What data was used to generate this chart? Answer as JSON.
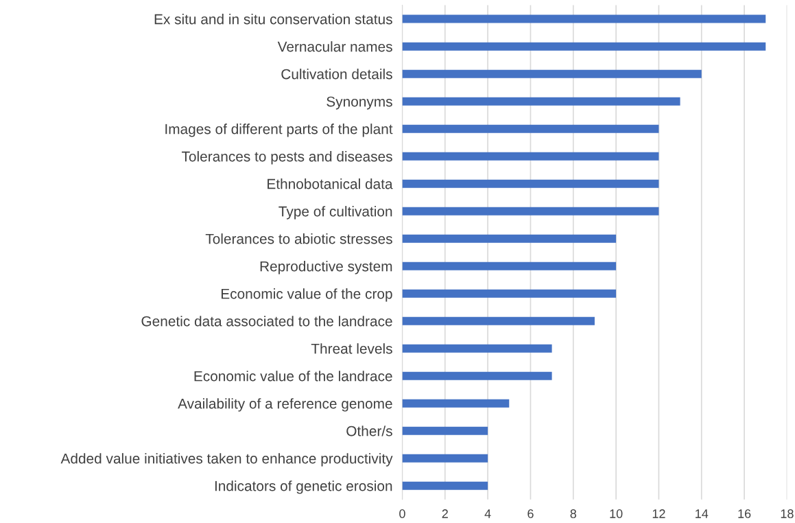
{
  "chart_data": {
    "type": "bar",
    "orientation": "horizontal",
    "categories": [
      "Ex situ and in situ conservation status",
      "Vernacular names",
      "Cultivation details",
      "Synonyms",
      "Images of different parts of the plant",
      "Tolerances to pests and diseases",
      "Ethnobotanical data",
      "Type of cultivation",
      "Tolerances to abiotic stresses",
      "Reproductive system",
      "Economic value of the crop",
      "Genetic data associated to the landrace",
      "Threat levels",
      "Economic value of the landrace",
      "Availability of a reference genome",
      "Other/s",
      "Added value initiatives taken to enhance productivity",
      "Indicators of genetic erosion"
    ],
    "values": [
      17,
      17,
      14,
      13,
      12,
      12,
      12,
      12,
      10,
      10,
      10,
      9,
      7,
      7,
      5,
      4,
      4,
      4
    ],
    "color": "#4472c4",
    "xlim": [
      0,
      18
    ],
    "xticks": [
      0,
      2,
      4,
      6,
      8,
      10,
      12,
      14,
      16,
      18
    ],
    "grid": "x",
    "legend": false
  }
}
